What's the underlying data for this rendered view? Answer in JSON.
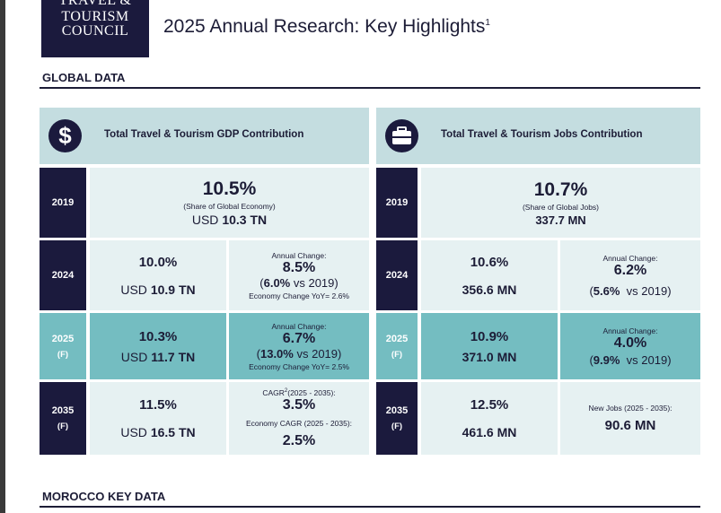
{
  "logo": {
    "line1": "TRAVEL &",
    "line2": "TOURISM",
    "line3": "COUNCIL"
  },
  "header": {
    "title": "2025 Annual Research: Key Highlights",
    "footnote_mark": "1"
  },
  "sections": {
    "global": "GLOBAL DATA",
    "morocco": "MOROCCO KEY DATA"
  },
  "gdp": {
    "icon": "dollar-icon",
    "title": "Total Travel & Tourism GDP Contribution",
    "y2019": {
      "year": "2019",
      "share": "10.5%",
      "share_note": "(Share of Global Economy)",
      "usd_prefix": "USD",
      "usd_value": "10.3 TN"
    },
    "y2024": {
      "year": "2024",
      "share": "10.0%",
      "usd_prefix": "USD",
      "usd_value": "10.9 TN",
      "change_label": "Annual Change:",
      "change_value": "8.5%",
      "vs_open": "(",
      "vs_value": "6.0%",
      "vs_text": " vs 2019)",
      "economy": "Economy Change YoY= 2.6%"
    },
    "y2025": {
      "year": "2025",
      "forecast": "(F)",
      "share": "10.3%",
      "usd_prefix": "USD",
      "usd_value": "11.7 TN",
      "change_label": "Annual Change:",
      "change_value": "6.7%",
      "vs_open": "(",
      "vs_value": "13.0%",
      "vs_text": " vs 2019)",
      "economy": "Economy Change YoY= 2.5%"
    },
    "y2035": {
      "year": "2035",
      "forecast": "(F)",
      "share": "11.5%",
      "usd_prefix": "USD",
      "usd_value": "16.5 TN",
      "cagr_label": "CAGR",
      "cagr_sup": "2",
      "cagr_range": "(2025 - 2035):",
      "cagr_value": "3.5%",
      "econ_cagr_label": "Economy CAGR (2025 - 2035):",
      "econ_cagr_value": "2.5%"
    }
  },
  "jobs": {
    "icon": "briefcase-icon",
    "title": "Total Travel & Tourism Jobs Contribution",
    "y2019": {
      "year": "2019",
      "share": "10.7%",
      "share_note": "(Share of Global Jobs)",
      "jobs": "337.7 MN"
    },
    "y2024": {
      "year": "2024",
      "share": "10.6%",
      "jobs": "356.6 MN",
      "change_label": "Annual Change:",
      "change_value": "6.2%",
      "vs_open": "(",
      "vs_value": "5.6%",
      "vs_text": "  vs 2019)"
    },
    "y2025": {
      "year": "2025",
      "forecast": "(F)",
      "share": "10.9%",
      "jobs": "371.0 MN",
      "change_label": "Annual Change:",
      "change_value": "4.0%",
      "vs_open": "(",
      "vs_value": "9.9%",
      "vs_text": "  vs 2019)"
    },
    "y2035": {
      "year": "2035",
      "forecast": "(F)",
      "share": "12.5%",
      "jobs": "461.6 MN",
      "new_jobs_label": "New Jobs (2025 - 2035):",
      "new_jobs_value": "90.6 MN"
    }
  },
  "colors": {
    "navy": "#1b1a3d",
    "teal": "#74bdc1",
    "light": "#e6f1f2",
    "header": "#c4dde0"
  }
}
